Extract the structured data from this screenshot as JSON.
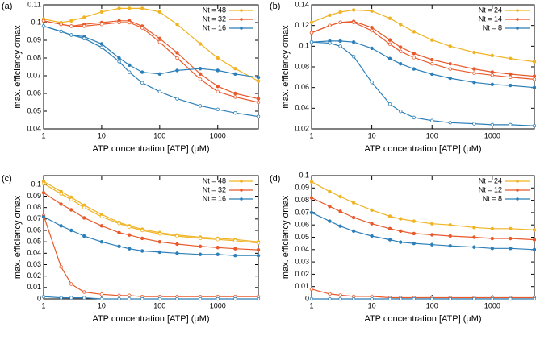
{
  "chart_data": [
    {
      "type": "line",
      "label": "(a)",
      "xlabel": "ATP concentration [ATP] (µM)",
      "ylabel": "max. efficiency σmax",
      "log_x": true,
      "legend": "top-right",
      "x": [
        1,
        2,
        3,
        5,
        10,
        20,
        30,
        50,
        100,
        200,
        500,
        1000,
        2000,
        5000
      ],
      "xlim": [
        1,
        5000
      ],
      "xticks": [
        1,
        10,
        100,
        1000
      ],
      "ylim": [
        0.04,
        0.11
      ],
      "yticks": [
        0.04,
        0.05,
        0.06,
        0.07,
        0.08,
        0.09,
        0.1,
        0.11
      ],
      "series": [
        {
          "name": "Nt = 48",
          "color": "#f0b323",
          "marker": "filled",
          "values": [
            0.102,
            0.1,
            0.101,
            0.103,
            0.106,
            0.108,
            0.108,
            0.108,
            0.106,
            0.099,
            0.088,
            0.08,
            0.074,
            0.067
          ]
        },
        {
          "name": "Nt = 32",
          "color": "#e8592b",
          "marker": "filled",
          "values": [
            0.101,
            0.099,
            0.098,
            0.099,
            0.1,
            0.101,
            0.101,
            0.098,
            0.091,
            0.083,
            0.071,
            0.064,
            0.06,
            0.057
          ]
        },
        {
          "color": "#e8592b",
          "marker": "open",
          "values": [
            0.101,
            0.099,
            0.098,
            0.098,
            0.099,
            0.1,
            0.1,
            0.097,
            0.089,
            0.08,
            0.068,
            0.061,
            0.058,
            0.055
          ]
        },
        {
          "name": "Nt = 16",
          "color": "#2c7fb8",
          "marker": "filled",
          "values": [
            0.098,
            0.095,
            0.093,
            0.092,
            0.088,
            0.08,
            0.076,
            0.072,
            0.071,
            0.073,
            0.074,
            0.073,
            0.071,
            0.069
          ]
        },
        {
          "color": "#2c7fb8",
          "marker": "open",
          "values": [
            0.098,
            0.095,
            0.093,
            0.091,
            0.086,
            0.078,
            0.072,
            0.066,
            0.061,
            0.057,
            0.053,
            0.051,
            0.049,
            0.047
          ]
        }
      ]
    },
    {
      "type": "line",
      "label": "(b)",
      "xlabel": "ATP concentration [ATP] (µM)",
      "ylabel": "max. efficiency σmax",
      "log_x": true,
      "legend": "top-right",
      "x": [
        1,
        2,
        3,
        5,
        10,
        20,
        30,
        50,
        100,
        200,
        500,
        1000,
        2000,
        5000
      ],
      "xlim": [
        1,
        5000
      ],
      "xticks": [
        1,
        10,
        100,
        1000
      ],
      "ylim": [
        0.02,
        0.14
      ],
      "yticks": [
        0.02,
        0.04,
        0.06,
        0.08,
        0.1,
        0.12,
        0.14
      ],
      "series": [
        {
          "name": "Nt = 24",
          "color": "#f0b323",
          "marker": "filled",
          "values": [
            0.123,
            0.13,
            0.133,
            0.135,
            0.134,
            0.127,
            0.121,
            0.114,
            0.106,
            0.1,
            0.094,
            0.091,
            0.088,
            0.085
          ]
        },
        {
          "name": "Nt = 14",
          "color": "#e8592b",
          "marker": "filled",
          "values": [
            0.113,
            0.12,
            0.123,
            0.124,
            0.118,
            0.106,
            0.099,
            0.093,
            0.087,
            0.083,
            0.078,
            0.075,
            0.073,
            0.071
          ]
        },
        {
          "color": "#e8592b",
          "marker": "open",
          "values": [
            0.113,
            0.12,
            0.123,
            0.123,
            0.115,
            0.102,
            0.095,
            0.089,
            0.083,
            0.078,
            0.074,
            0.072,
            0.07,
            0.068
          ]
        },
        {
          "name": "Nt = 8",
          "color": "#2c7fb8",
          "marker": "filled",
          "values": [
            0.104,
            0.105,
            0.105,
            0.104,
            0.098,
            0.088,
            0.083,
            0.078,
            0.073,
            0.069,
            0.065,
            0.063,
            0.062,
            0.06
          ]
        },
        {
          "color": "#2c7fb8",
          "marker": "open",
          "values": [
            0.104,
            0.103,
            0.1,
            0.09,
            0.065,
            0.044,
            0.037,
            0.031,
            0.028,
            0.026,
            0.025,
            0.024,
            0.024,
            0.023
          ]
        }
      ]
    },
    {
      "type": "line",
      "label": "(c)",
      "xlabel": "ATP concentration [ATP] (µM)",
      "ylabel": "max. efficiency σmax",
      "log_x": true,
      "legend": "top-right",
      "x": [
        1,
        2,
        3,
        5,
        10,
        20,
        30,
        50,
        100,
        200,
        500,
        1000,
        2000,
        5000
      ],
      "xlim": [
        1,
        5000
      ],
      "xticks": [
        1,
        10,
        100,
        1000
      ],
      "ylim": [
        0,
        0.108
      ],
      "yticks": [
        0,
        0.01,
        0.02,
        0.03,
        0.04,
        0.05,
        0.06,
        0.07,
        0.08,
        0.09,
        0.1
      ],
      "series": [
        {
          "name": "Nt = 48",
          "color": "#f0b323",
          "marker": "filled",
          "values": [
            0.103,
            0.094,
            0.089,
            0.082,
            0.074,
            0.067,
            0.064,
            0.061,
            0.058,
            0.056,
            0.054,
            0.053,
            0.052,
            0.05
          ]
        },
        {
          "color": "#f0b323",
          "marker": "open",
          "values": [
            0.101,
            0.092,
            0.087,
            0.08,
            0.072,
            0.066,
            0.063,
            0.06,
            0.057,
            0.055,
            0.053,
            0.052,
            0.051,
            0.049
          ]
        },
        {
          "name": "Nt = 32",
          "color": "#e8592b",
          "marker": "filled",
          "values": [
            0.093,
            0.083,
            0.078,
            0.071,
            0.064,
            0.058,
            0.056,
            0.053,
            0.05,
            0.048,
            0.046,
            0.045,
            0.044,
            0.043
          ]
        },
        {
          "color": "#e8592b",
          "marker": "open",
          "values": [
            0.073,
            0.028,
            0.013,
            0.006,
            0.004,
            0.003,
            0.003,
            0.002,
            0.002,
            0.002,
            0.002,
            0.002,
            0.002,
            0.002
          ]
        },
        {
          "name": "Nt = 16",
          "color": "#2c7fb8",
          "marker": "filled",
          "values": [
            0.072,
            0.064,
            0.06,
            0.055,
            0.05,
            0.046,
            0.044,
            0.042,
            0.041,
            0.04,
            0.039,
            0.039,
            0.038,
            0.038
          ]
        },
        {
          "color": "#2c7fb8",
          "marker": "open",
          "values": [
            0.002,
            0.001,
            0.001,
            0.001,
            0,
            0,
            0,
            0,
            0,
            0,
            0,
            0,
            0,
            0
          ]
        }
      ]
    },
    {
      "type": "line",
      "label": "(d)",
      "xlabel": "ATP concentration [ATP] (µM)",
      "ylabel": "max. efficiency σmax",
      "log_x": true,
      "legend": "top-right",
      "x": [
        1,
        2,
        3,
        5,
        10,
        20,
        30,
        50,
        100,
        200,
        500,
        1000,
        2000,
        5000
      ],
      "xlim": [
        1,
        5000
      ],
      "xticks": [
        1,
        10,
        100,
        1000
      ],
      "ylim": [
        0,
        0.1
      ],
      "yticks": [
        0,
        0.01,
        0.02,
        0.03,
        0.04,
        0.05,
        0.06,
        0.07,
        0.08,
        0.09,
        0.1
      ],
      "series": [
        {
          "name": "Nt = 24",
          "color": "#f0b323",
          "marker": "filled",
          "values": [
            0.095,
            0.087,
            0.083,
            0.078,
            0.072,
            0.067,
            0.065,
            0.063,
            0.061,
            0.06,
            0.058,
            0.057,
            0.057,
            0.056
          ]
        },
        {
          "name": "Nt = 12",
          "color": "#e8592b",
          "marker": "filled",
          "values": [
            0.082,
            0.075,
            0.071,
            0.066,
            0.061,
            0.057,
            0.055,
            0.053,
            0.052,
            0.051,
            0.05,
            0.049,
            0.049,
            0.048
          ]
        },
        {
          "color": "#e8592b",
          "marker": "open",
          "values": [
            0.008,
            0.004,
            0.003,
            0.002,
            0.002,
            0.001,
            0.001,
            0.001,
            0.001,
            0.001,
            0.001,
            0.001,
            0.001,
            0.001
          ]
        },
        {
          "name": "Nt = 8",
          "color": "#2c7fb8",
          "marker": "filled",
          "values": [
            0.07,
            0.063,
            0.059,
            0.055,
            0.051,
            0.048,
            0.046,
            0.045,
            0.044,
            0.043,
            0.042,
            0.041,
            0.041,
            0.04
          ]
        },
        {
          "color": "#2c7fb8",
          "marker": "open",
          "values": [
            0,
            0,
            0,
            0,
            0,
            0,
            0,
            0,
            0,
            0,
            0,
            0,
            0,
            0
          ]
        }
      ]
    }
  ]
}
